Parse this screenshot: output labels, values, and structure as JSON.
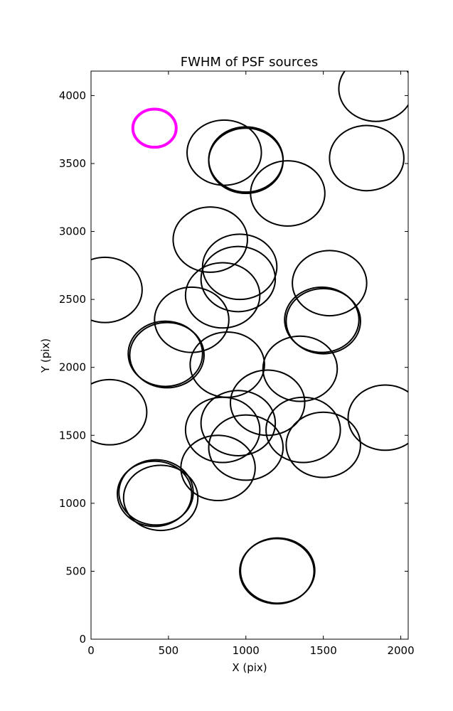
{
  "chart_data": {
    "type": "scatter",
    "title": "FWHM of PSF sources",
    "xlabel": "X (pix)",
    "ylabel": "Y (pix)",
    "xlim": [
      0,
      2048
    ],
    "ylim": [
      0,
      4180
    ],
    "x_ticks": [
      0,
      500,
      1000,
      1500,
      2000
    ],
    "y_ticks": [
      0,
      500,
      1000,
      1500,
      2000,
      2500,
      3000,
      3500,
      4000
    ],
    "grid": false,
    "marker": "open circle, radius = FWHM",
    "series": [
      {
        "color": "#000000",
        "points": [
          {
            "x": 1840,
            "y": 4050,
            "r": 240
          },
          {
            "x": 860,
            "y": 3580,
            "r": 240
          },
          {
            "x": 1000,
            "y": 3520,
            "r": 240
          },
          {
            "x": 1000,
            "y": 3530,
            "r": 240
          },
          {
            "x": 1780,
            "y": 3540,
            "r": 240
          },
          {
            "x": 1270,
            "y": 3280,
            "r": 240
          },
          {
            "x": 770,
            "y": 2940,
            "r": 240
          },
          {
            "x": 960,
            "y": 2740,
            "r": 240
          },
          {
            "x": 950,
            "y": 2650,
            "r": 240
          },
          {
            "x": 1540,
            "y": 2620,
            "r": 240
          },
          {
            "x": 90,
            "y": 2570,
            "r": 240
          },
          {
            "x": 850,
            "y": 2530,
            "r": 240
          },
          {
            "x": 650,
            "y": 2350,
            "r": 240
          },
          {
            "x": 1490,
            "y": 2350,
            "r": 240
          },
          {
            "x": 1500,
            "y": 2340,
            "r": 240
          },
          {
            "x": 490,
            "y": 2090,
            "r": 240
          },
          {
            "x": 480,
            "y": 2100,
            "r": 240
          },
          {
            "x": 880,
            "y": 2020,
            "r": 240
          },
          {
            "x": 1350,
            "y": 1990,
            "r": 240
          },
          {
            "x": 1140,
            "y": 1740,
            "r": 240
          },
          {
            "x": 1900,
            "y": 1630,
            "r": 240
          },
          {
            "x": 120,
            "y": 1670,
            "r": 240
          },
          {
            "x": 950,
            "y": 1590,
            "r": 240
          },
          {
            "x": 850,
            "y": 1540,
            "r": 240
          },
          {
            "x": 1370,
            "y": 1540,
            "r": 240
          },
          {
            "x": 1500,
            "y": 1430,
            "r": 240
          },
          {
            "x": 1000,
            "y": 1410,
            "r": 240
          },
          {
            "x": 820,
            "y": 1260,
            "r": 240
          },
          {
            "x": 410,
            "y": 1070,
            "r": 240
          },
          {
            "x": 420,
            "y": 1080,
            "r": 240
          },
          {
            "x": 450,
            "y": 1040,
            "r": 240
          },
          {
            "x": 1200,
            "y": 500,
            "r": 240
          },
          {
            "x": 1205,
            "y": 505,
            "r": 240
          }
        ]
      },
      {
        "color": "#ff00ff",
        "points": [
          {
            "x": 410,
            "y": 3760,
            "r": 140
          }
        ]
      }
    ]
  }
}
